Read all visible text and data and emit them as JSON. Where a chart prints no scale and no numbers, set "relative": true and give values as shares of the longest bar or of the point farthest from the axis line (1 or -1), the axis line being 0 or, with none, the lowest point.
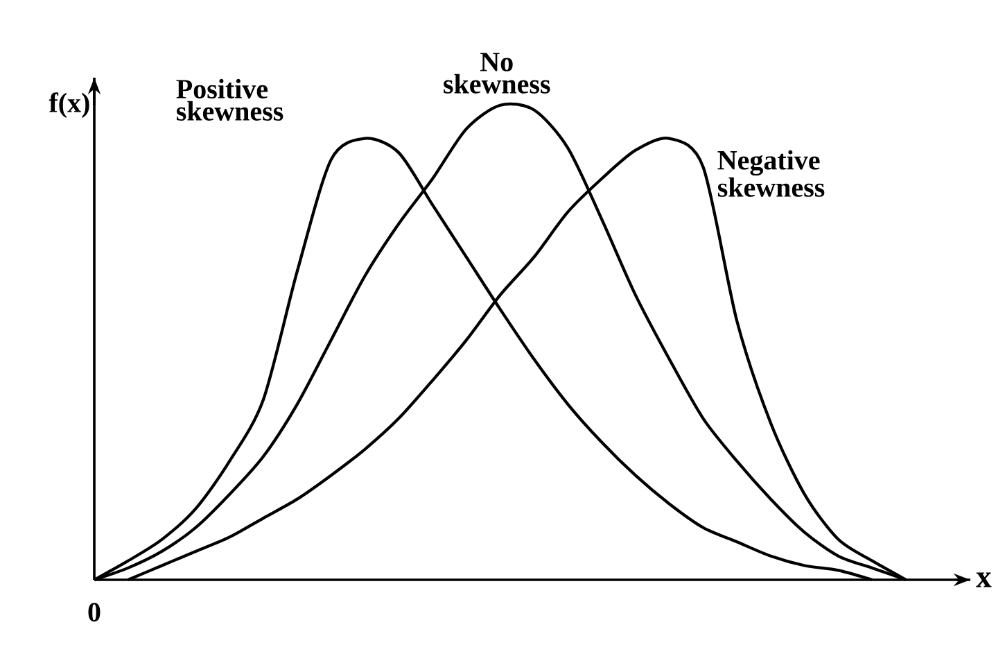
{
  "chart_data": {
    "type": "line",
    "relative": true,
    "xlabel": "x",
    "ylabel": "f(x)",
    "annotations": [
      "0"
    ],
    "legend": false,
    "marker": "none",
    "line_style": "solid",
    "categories": [
      null,
      null,
      null,
      null,
      null,
      null,
      null,
      null,
      null,
      null,
      null,
      null,
      null,
      null,
      null,
      null,
      null,
      null,
      null,
      null,
      null,
      null,
      null,
      null,
      null
    ],
    "series": [
      {
        "name": "Positive skewness",
        "color": "#000000",
        "values": [
          0,
          0.04,
          0.085,
          0.15,
          0.25,
          0.38,
          0.65,
          0.885,
          0.93,
          0.9,
          0.79,
          0.68,
          0.57,
          0.465,
          0.37,
          0.29,
          0.22,
          0.16,
          0.11,
          0.08,
          0.05,
          0.03,
          0.02,
          0,
          null
        ]
      },
      {
        "name": "No skewness",
        "color": "#000000",
        "values": [
          0,
          0.025,
          0.06,
          0.11,
          0.18,
          0.26,
          0.37,
          0.505,
          0.64,
          0.75,
          0.845,
          0.95,
          1,
          0.99,
          0.91,
          0.76,
          0.6,
          0.465,
          0.34,
          0.25,
          0.17,
          0.1,
          0.05,
          0.025,
          0
        ]
      },
      {
        "name": "Negative skewness",
        "color": "#000000",
        "values": [
          null,
          0,
          0.03,
          0.06,
          0.09,
          0.13,
          0.17,
          0.22,
          0.275,
          0.34,
          0.42,
          0.505,
          0.6,
          0.68,
          0.775,
          0.845,
          0.905,
          0.93,
          0.87,
          0.545,
          0.33,
          0.18,
          0.085,
          0.04,
          0
        ]
      }
    ]
  }
}
